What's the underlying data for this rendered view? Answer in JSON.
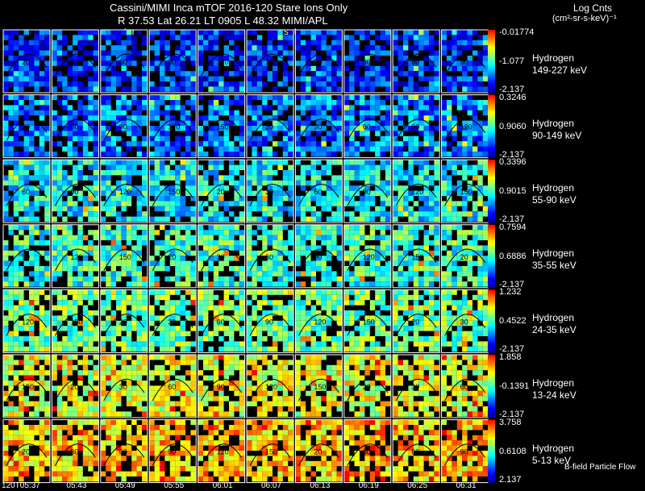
{
  "header": {
    "title": "Cassini/MIMI Inca mTOF  2016-120   Stare   Ions Only",
    "info": "R      37.53 Lat 26.21 LT 0905 L      48.32  MIMI/APL",
    "satur_1": "satur",
    "satur_2": "saturn",
    "units_line1": "Log Cnts",
    "units_line2": "(cm²-sr-s-keV)⁻¹",
    "footer_note": "B-field Particle Flow"
  },
  "colors": {
    "background": "#000000",
    "panel_border": "#ffffff",
    "colormap": [
      "#0000a0",
      "#0000ff",
      "#0080ff",
      "#00ffff",
      "#80ff80",
      "#ffff00",
      "#ff8000",
      "#ff0000"
    ]
  },
  "chart_data": {
    "type": "heatmap",
    "description_rows": "energy channels",
    "columns": 10,
    "time_labels": [
      "120T05:37",
      "05:43",
      "05:49",
      "05:55",
      "06:01",
      "06:07",
      "06:13",
      "06:19",
      "06:25",
      "06:31"
    ],
    "rows": [
      {
        "species": "Hydrogen",
        "energy": "149-227 keV",
        "cb_max": "-0.01774",
        "cb_mid": "-1.077",
        "cb_min": "-2.137",
        "level": 0.18
      },
      {
        "species": "Hydrogen",
        "energy": "90-149 keV",
        "cb_max": "0.3246",
        "cb_mid": "0.9060",
        "cb_min": "-2.137",
        "level": 0.28
      },
      {
        "species": "Hydrogen",
        "energy": "55-90 keV",
        "cb_max": "0.3396",
        "cb_mid": "0.9015",
        "cb_min": "-2.137",
        "level": 0.42
      },
      {
        "species": "Hydrogen",
        "energy": "35-55 keV",
        "cb_max": "0.7594",
        "cb_mid": "0.6886",
        "cb_min": "-2.137",
        "level": 0.48
      },
      {
        "species": "Hydrogen",
        "energy": "24-35 keV",
        "cb_max": "1.232",
        "cb_mid": "0.4522",
        "cb_min": "-2.137",
        "level": 0.55
      },
      {
        "species": "Hydrogen",
        "energy": "13-24 keV",
        "cb_max": "1.858",
        "cb_mid": "-0.1391",
        "cb_min": "-2.137",
        "level": 0.68
      },
      {
        "species": "Hydrogen",
        "energy": "5-13 keV",
        "cb_max": "3.758",
        "cb_mid": "0.6108",
        "cb_min": "2.137",
        "level": 0.78
      }
    ],
    "contour_labels": [
      "20",
      "30",
      "60",
      "90",
      "120",
      "150"
    ]
  }
}
